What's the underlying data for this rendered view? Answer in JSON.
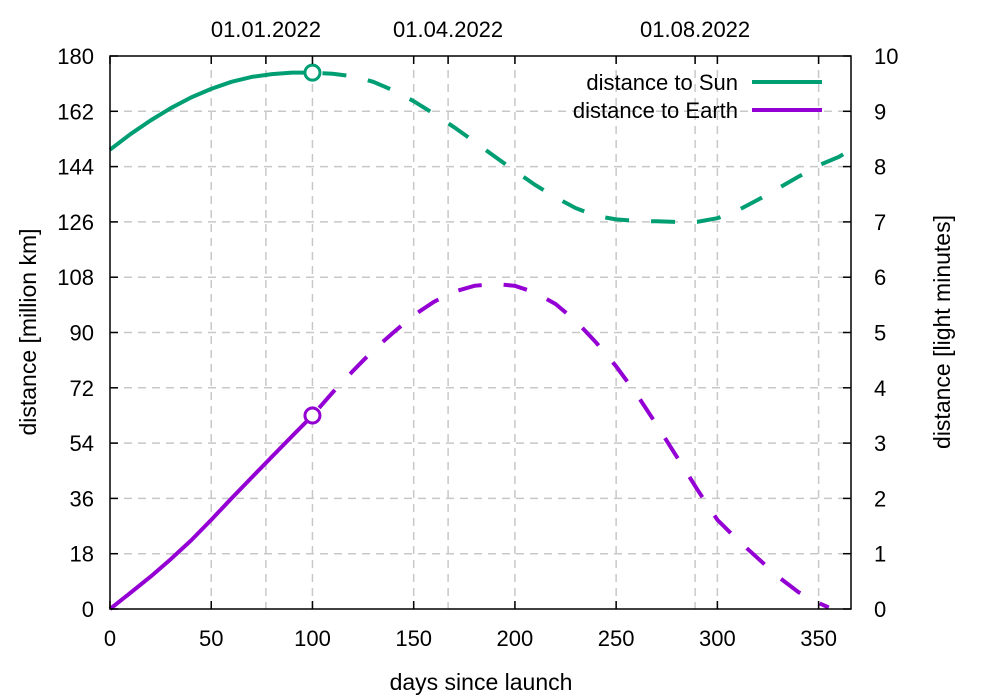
{
  "chart_data": {
    "type": "line",
    "title": "",
    "xlabel": "days since launch",
    "ylabel": "distance [million km]",
    "y2label": "distance [light minutes]",
    "xlim": [
      0,
      366
    ],
    "ylim": [
      0,
      180
    ],
    "y2lim": [
      0,
      10
    ],
    "x_ticks": [
      0,
      50,
      100,
      150,
      200,
      250,
      300,
      350
    ],
    "y_ticks": [
      0,
      18,
      36,
      54,
      72,
      90,
      108,
      126,
      144,
      162,
      180
    ],
    "y2_ticks": [
      0,
      1,
      2,
      3,
      4,
      5,
      6,
      7,
      8,
      9,
      10
    ],
    "x2_ticks": [
      {
        "day": 77,
        "label": "01.01.2022"
      },
      {
        "day": 167,
        "label": "01.04.2022"
      },
      {
        "day": 289,
        "label": "01.08.2022"
      }
    ],
    "x_grid_days": [
      50,
      100,
      150,
      200,
      250,
      300,
      350
    ],
    "extra_grid_days": [
      77,
      167,
      289
    ],
    "grid": true,
    "legend_position": "top-right",
    "marker_day": 100,
    "series": [
      {
        "name": "distance to Sun",
        "color": "#009e73",
        "x": [
          0,
          10,
          20,
          30,
          40,
          50,
          60,
          70,
          80,
          90,
          100,
          110,
          120,
          130,
          140,
          150,
          160,
          170,
          180,
          190,
          200,
          210,
          220,
          230,
          240,
          250,
          260,
          270,
          280,
          290,
          300,
          310,
          320,
          330,
          340,
          350,
          360,
          366
        ],
        "y": [
          149.5,
          154.5,
          159.0,
          163.0,
          166.5,
          169.3,
          171.6,
          173.2,
          174.1,
          174.6,
          174.6,
          174.2,
          173.4,
          171.6,
          168.8,
          165.3,
          161.2,
          156.8,
          152.1,
          147.3,
          142.6,
          138.0,
          134.0,
          130.5,
          128.0,
          126.8,
          126.3,
          126.2,
          126.0,
          126.0,
          127.2,
          129.7,
          133.2,
          136.9,
          140.7,
          144.4,
          147.2,
          149.5
        ]
      },
      {
        "name": "distance to Earth",
        "color": "#9400d3",
        "x": [
          0,
          10,
          20,
          30,
          40,
          50,
          60,
          70,
          80,
          90,
          100,
          110,
          120,
          130,
          140,
          150,
          160,
          170,
          180,
          190,
          200,
          210,
          220,
          230,
          240,
          250,
          260,
          270,
          280,
          290,
          300,
          310,
          320,
          330,
          340,
          350,
          355
        ],
        "y": [
          0,
          5.2,
          10.5,
          16.2,
          22.3,
          29.0,
          36.0,
          42.8,
          49.6,
          56.3,
          63.0,
          70.5,
          77.5,
          84.2,
          90.0,
          95.6,
          100.0,
          103.3,
          105.2,
          105.8,
          105.2,
          103.0,
          99.3,
          93.8,
          86.8,
          79.0,
          70.0,
          60.0,
          49.5,
          39.0,
          29.0,
          22.5,
          16.5,
          10.5,
          5.5,
          2.0,
          0.5
        ]
      }
    ]
  }
}
